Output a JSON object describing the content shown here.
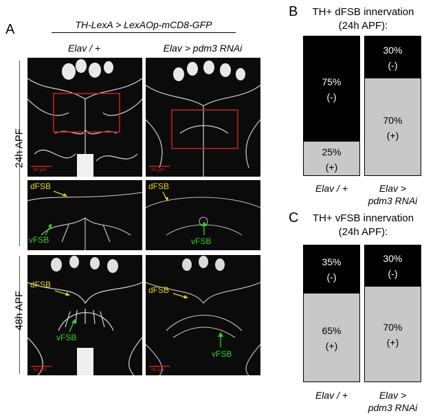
{
  "panel_a": {
    "letter": "A",
    "title": "TH-LexA > LexAOp-mCD8-GFP",
    "col_left": "Elav / +",
    "col_right": "Elav > pdm3 RNAi",
    "row_24h": "24h APF",
    "row_48h": "48h APF",
    "scale": "50 µm",
    "labels": {
      "dfsb": "dFSB",
      "vfsb": "vFSB"
    },
    "colors": {
      "dfsb": "#e8d21a",
      "vfsb": "#2fcf2f",
      "roi": "#d02020"
    }
  },
  "panel_b": {
    "letter": "B",
    "title_line1": "TH+ dFSB innervation",
    "title_line2": "(24h APF):",
    "categories": [
      "Elav / +",
      "Elav > pdm3 RNAi"
    ],
    "cat_lines": [
      [
        "Elav / +",
        ""
      ],
      [
        "Elav >",
        "pdm3 RNAi"
      ]
    ]
  },
  "panel_c": {
    "letter": "C",
    "title_line1": "TH+ vFSB innervation",
    "title_line2": "(24h APF):",
    "categories": [
      "Elav / +",
      "Elav > pdm3 RNAi"
    ],
    "cat_lines": [
      [
        "Elav / +",
        ""
      ],
      [
        "Elav >",
        "pdm3 RNAi"
      ]
    ]
  },
  "chart_data": [
    {
      "type": "bar",
      "stacked": true,
      "title": "TH+ dFSB innervation (24h APF):",
      "categories": [
        "Elav / +",
        "Elav > pdm3 RNAi"
      ],
      "series": [
        {
          "name": "(-)",
          "color": "#000000",
          "values": [
            75,
            30
          ],
          "labels": [
            "75%",
            "30%"
          ]
        },
        {
          "name": "(+)",
          "color": "#c8c8c8",
          "values": [
            25,
            70
          ],
          "labels": [
            "25%",
            "70%"
          ]
        }
      ],
      "ylim": [
        0,
        100
      ]
    },
    {
      "type": "bar",
      "stacked": true,
      "title": "TH+ vFSB innervation (24h APF):",
      "categories": [
        "Elav / +",
        "Elav > pdm3 RNAi"
      ],
      "series": [
        {
          "name": "(-)",
          "color": "#000000",
          "values": [
            35,
            30
          ],
          "labels": [
            "35%",
            "30%"
          ]
        },
        {
          "name": "(+)",
          "color": "#c8c8c8",
          "values": [
            65,
            70
          ],
          "labels": [
            "65%",
            "70%"
          ]
        }
      ],
      "ylim": [
        0,
        100
      ]
    }
  ]
}
